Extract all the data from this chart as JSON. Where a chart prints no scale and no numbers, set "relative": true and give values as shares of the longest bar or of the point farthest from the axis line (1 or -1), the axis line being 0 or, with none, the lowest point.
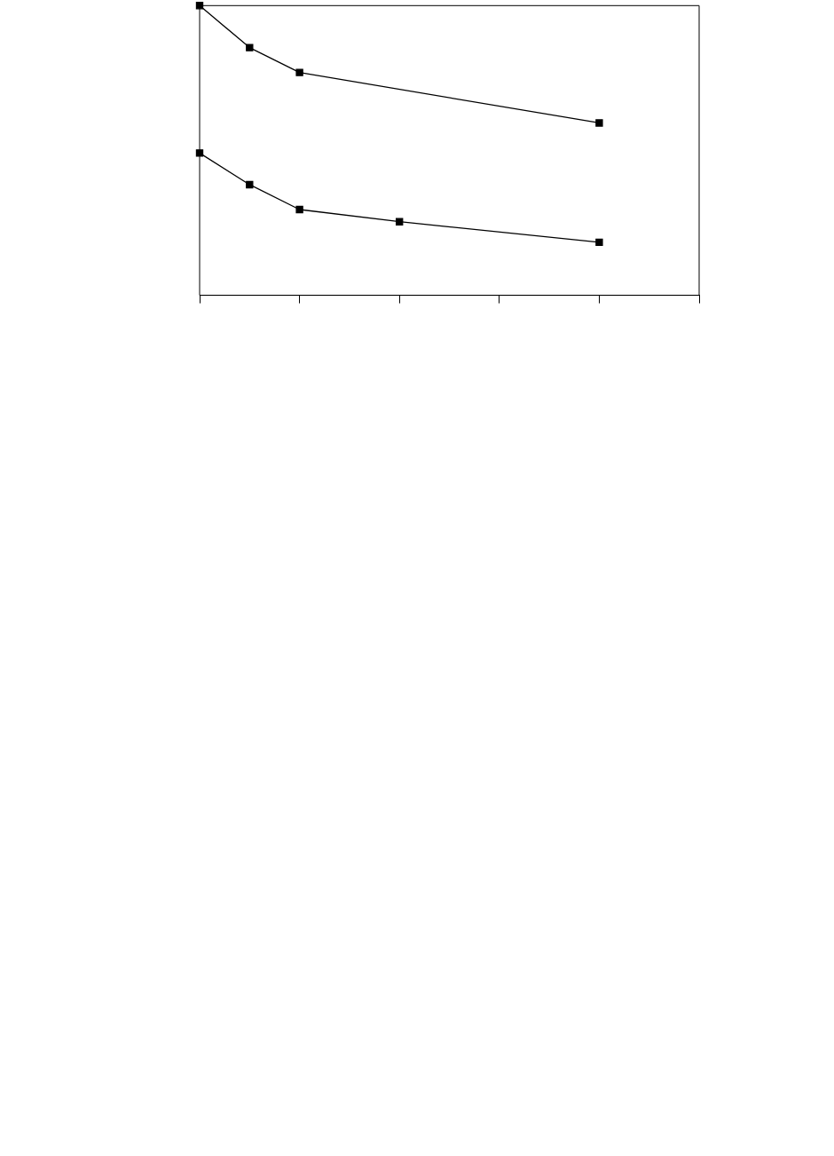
{
  "chart_data": {
    "type": "line",
    "relative": true,
    "marker": "square",
    "line_style": "solid",
    "grid": false,
    "legend": false,
    "categories": [
      null,
      null,
      null,
      null,
      null,
      null,
      null,
      null,
      null,
      null,
      null
    ],
    "series": [
      {
        "color": "#000000",
        "values": [
          1,
          0.855,
          0.769,
          null,
          null,
          null,
          null,
          null,
          0.595,
          null,
          null
        ]
      },
      {
        "color": "#000000",
        "values": [
          0.491,
          0.382,
          0.296,
          null,
          0.254,
          null,
          null,
          null,
          0.183,
          null,
          null
        ]
      }
    ]
  }
}
